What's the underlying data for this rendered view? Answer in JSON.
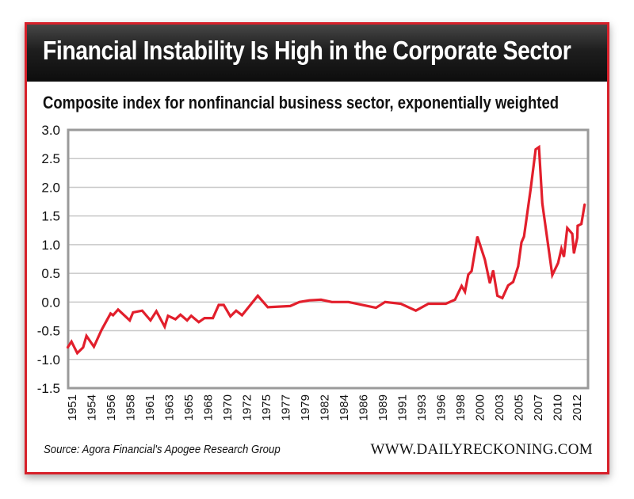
{
  "header": {
    "title": "Financial Instability Is High in the Corporate Sector"
  },
  "footer": {
    "source": "Source: Agora Financial's Apogee Research Group",
    "site": "WWW.DAILYRECKONING.COM"
  },
  "colors": {
    "line": "#e21f2c",
    "border": "#d7202a",
    "grid": "#c8c8c8",
    "frame": "#9a9a9a"
  },
  "chart_data": {
    "type": "line",
    "title": "Composite index for nonfinancial business sector, exponentially weighted",
    "xlabel": "",
    "ylabel": "",
    "xlim": [
      1951,
      2013.5
    ],
    "ylim": [
      -1.5,
      3.0
    ],
    "grid": true,
    "yticks": [
      "3.0",
      "2.5",
      "2.0",
      "1.5",
      "1.0",
      "0.5",
      "0.0",
      "-0.5",
      "-1.0",
      "-1.5"
    ],
    "xticks": [
      "1951",
      "1954",
      "1956",
      "1958",
      "1961",
      "1963",
      "1965",
      "1968",
      "1970",
      "1972",
      "1975",
      "1977",
      "1979",
      "1982",
      "1984",
      "1986",
      "1989",
      "1991",
      "1993",
      "1996",
      "1998",
      "2000",
      "2003",
      "2005",
      "2007",
      "2010",
      "2012"
    ],
    "series": [
      {
        "name": "Composite index",
        "x": [
          1950.9,
          1951.4,
          1952.1,
          1952.8,
          1953.2,
          1954.1,
          1955.0,
          1956.1,
          1956.4,
          1957.0,
          1958.4,
          1958.8,
          1959.9,
          1960.9,
          1961.6,
          1962.6,
          1963.0,
          1963.9,
          1964.5,
          1965.3,
          1965.8,
          1966.7,
          1967.4,
          1968.4,
          1969.1,
          1969.7,
          1970.5,
          1971.2,
          1971.9,
          1973.8,
          1975.0,
          1977.7,
          1978.8,
          1980.0,
          1981.4,
          1982.7,
          1984.7,
          1988.0,
          1989.1,
          1991.0,
          1992.8,
          1994.3,
          1996.4,
          1997.5,
          1998.3,
          1998.7,
          1999.1,
          1999.5,
          2000.2,
          2001.1,
          2001.7,
          2002.1,
          2002.6,
          2003.2,
          2003.9,
          2004.5,
          2005.1,
          2005.5,
          2005.8,
          2006.6,
          2007.2,
          2007.6,
          2008.0,
          2009.2,
          2009.9,
          2010.3,
          2010.6,
          2011.0,
          2011.6,
          2011.8,
          2012.2,
          2012.25,
          2012.7,
          2013.1
        ],
        "y": [
          -0.8,
          -0.69,
          -0.89,
          -0.79,
          -0.59,
          -0.78,
          -0.49,
          -0.2,
          -0.23,
          -0.13,
          -0.32,
          -0.18,
          -0.15,
          -0.32,
          -0.16,
          -0.43,
          -0.24,
          -0.3,
          -0.22,
          -0.32,
          -0.24,
          -0.35,
          -0.28,
          -0.28,
          -0.05,
          -0.05,
          -0.25,
          -0.15,
          -0.23,
          0.11,
          -0.09,
          -0.07,
          0.0,
          0.03,
          0.04,
          0.0,
          0.0,
          -0.1,
          0.0,
          -0.03,
          -0.15,
          -0.03,
          -0.03,
          0.04,
          0.28,
          0.18,
          0.48,
          0.54,
          1.14,
          0.74,
          0.33,
          0.55,
          0.11,
          0.07,
          0.29,
          0.35,
          0.62,
          1.04,
          1.14,
          1.97,
          2.66,
          2.7,
          1.72,
          0.47,
          0.68,
          0.93,
          0.79,
          1.29,
          1.19,
          0.85,
          1.12,
          1.33,
          1.36,
          1.71
        ]
      }
    ]
  }
}
